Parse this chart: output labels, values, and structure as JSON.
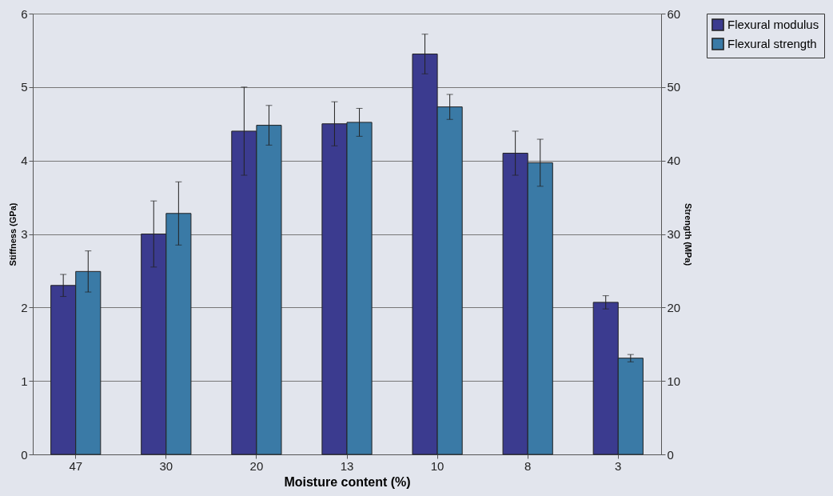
{
  "chart_data": {
    "type": "bar",
    "xlabel": "Moisture content (%)",
    "ylabel": "Stiffness (GPa)",
    "y2label": "Strength (MPa)",
    "categories": [
      "47",
      "30",
      "20",
      "13",
      "10",
      "8",
      "3"
    ],
    "series": [
      {
        "name": "Flexural modulus",
        "color": "#3b3b8f",
        "values": [
          2.3,
          3.0,
          4.4,
          4.5,
          5.45,
          4.1,
          2.07
        ],
        "errors": [
          0.15,
          0.45,
          0.6,
          0.3,
          0.27,
          0.3,
          0.09
        ]
      },
      {
        "name": "Flexural strength",
        "color": "#3a7aa6",
        "axis": "y2",
        "values": [
          24.9,
          32.8,
          44.8,
          45.2,
          47.3,
          39.7,
          13.1
        ],
        "errors": [
          2.8,
          4.3,
          2.7,
          1.9,
          1.7,
          3.2,
          0.5
        ]
      }
    ],
    "ylim": [
      0,
      6
    ],
    "yticks": [
      0,
      1,
      2,
      3,
      4,
      5,
      6
    ],
    "y2lim": [
      0,
      60
    ],
    "y2ticks": [
      0,
      10,
      20,
      30,
      40,
      50,
      60
    ],
    "grid": "y",
    "legend": "right"
  }
}
